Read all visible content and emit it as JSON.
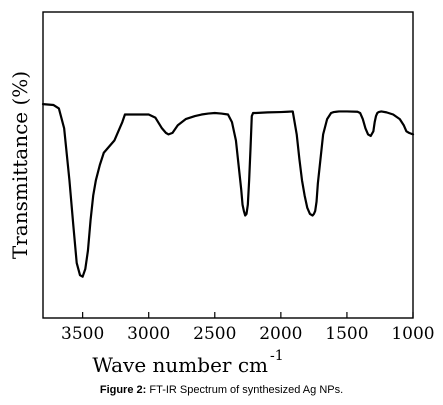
{
  "chart_data": {
    "type": "line",
    "xlabel": "Wave number cm",
    "xlabel_superscript": "-1",
    "ylabel": "Transmittance (%)",
    "xlim": [
      3800,
      1000
    ],
    "xticks": [
      3500,
      3000,
      2500,
      2000,
      1500,
      1000
    ],
    "xtick_labels": [
      "3500",
      "3000",
      "2500",
      "2000",
      "1500",
      "1000"
    ],
    "ylim": [
      0,
      100
    ],
    "yticks_shown": false,
    "grid": false,
    "legend": "none",
    "series": [
      {
        "x": [
          3800,
          3720,
          3680,
          3640,
          3600,
          3570,
          3545,
          3520,
          3500,
          3480,
          3460,
          3440,
          3420,
          3400,
          3370,
          3340,
          3300,
          3260,
          3220,
          3200,
          3180,
          3100,
          3000,
          2950,
          2900,
          2870,
          2850,
          2820,
          2780,
          2720,
          2650,
          2600,
          2550,
          2500,
          2450,
          2400,
          2370,
          2340,
          2320,
          2300,
          2290,
          2280,
          2270,
          2260,
          2250,
          2240,
          2230,
          2220,
          2210,
          2190,
          2100,
          2000,
          1950,
          1910,
          1900,
          1880,
          1860,
          1840,
          1820,
          1800,
          1780,
          1760,
          1750,
          1740,
          1730,
          1720,
          1700,
          1680,
          1650,
          1620,
          1600,
          1580,
          1560,
          1500,
          1420,
          1400,
          1380,
          1360,
          1340,
          1320,
          1300,
          1290,
          1280,
          1270,
          1260,
          1240,
          1200,
          1150,
          1100,
          1070,
          1050,
          1030,
          1000
        ],
        "y": [
          69.9,
          69.6,
          68.5,
          62,
          45,
          30,
          18,
          14,
          13.5,
          16,
          22,
          32,
          40,
          45,
          50,
          54,
          56,
          58,
          62,
          64,
          66.5,
          66.5,
          66.5,
          65.5,
          62,
          60.5,
          60,
          60.5,
          63,
          65,
          66,
          66.5,
          66.8,
          67,
          66.8,
          66.5,
          64,
          58,
          50,
          42,
          37,
          35,
          33.5,
          34,
          37,
          45,
          55,
          66,
          67,
          67,
          67.2,
          67.3,
          67.4,
          67.5,
          65,
          60,
          52,
          45,
          40,
          36,
          34,
          33.5,
          34,
          35,
          38,
          44,
          52,
          60,
          65,
          67,
          67.3,
          67.4,
          67.5,
          67.5,
          67.4,
          67,
          65,
          62,
          60,
          59.5,
          61,
          64,
          66,
          67,
          67.3,
          67.5,
          67.2,
          66.5,
          65,
          63,
          61,
          60.5,
          60
        ]
      }
    ]
  },
  "caption": {
    "label": "Figure 2:",
    "text": "FT-IR Spectrum of synthesized Ag NPs."
  }
}
